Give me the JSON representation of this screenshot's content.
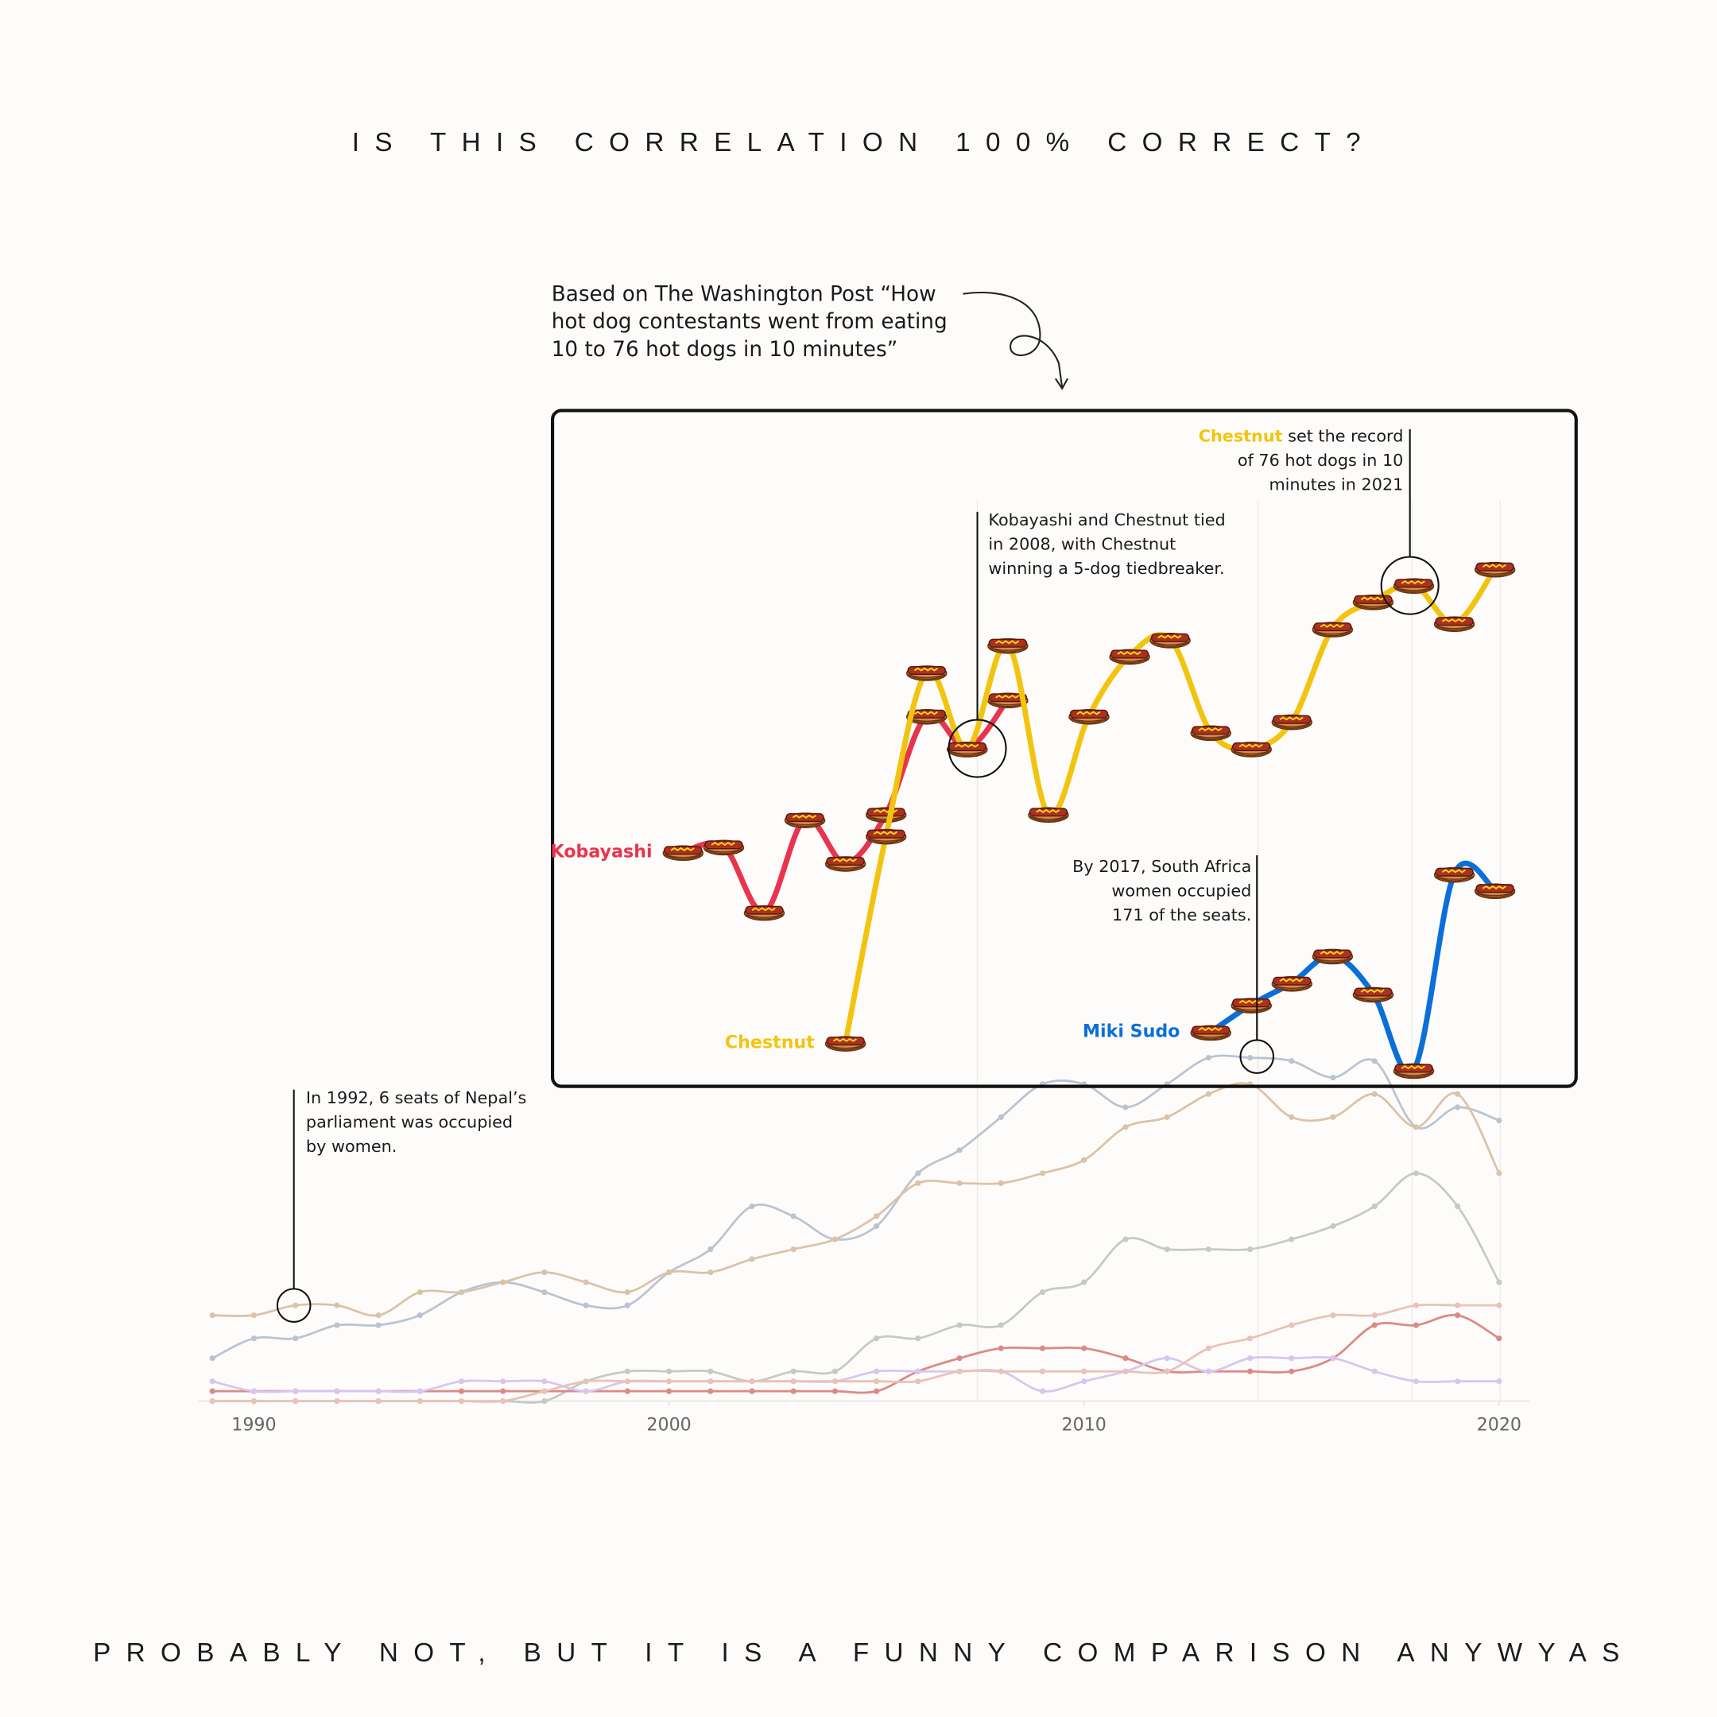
{
  "title": "IS THIS CORRELATION 100% CORRECT?",
  "footer": "PROBABLY NOT, BUT IT IS A FUNNY COMPARISON ANYWYAS",
  "note": {
    "lines": [
      "Based on The Washington Post “How",
      "hot dog contestants went from eating",
      "10 to 76 hot dogs in 10 minutes”"
    ]
  },
  "annotations": [
    {
      "lines": [
        "In 1992, 6 seats of Nepal’s",
        "parliament was occupied",
        "by women."
      ]
    },
    {
      "lines": [
        "Kobayashi and Chestnut tied",
        "in 2008, with Chestnut",
        "winning a 5-dog tiedbreaker."
      ]
    },
    {
      "highlight": "Chestnut",
      "lines": [
        " set the record",
        "of 76 hot dogs in 10",
        "minutes in 2021"
      ]
    },
    {
      "lines": [
        "By 2017, South Africa",
        "women occupied",
        "171 of the seats."
      ]
    }
  ],
  "chart_data": [
    {
      "type": "line",
      "x": [
        1989,
        1990,
        1991,
        1992,
        1993,
        1994,
        1995,
        1996,
        1997,
        1998,
        1999,
        2000,
        2001,
        2002,
        2003,
        2004,
        2005,
        2006,
        2007,
        2008,
        2009,
        2010,
        2011,
        2012,
        2013,
        2014,
        2015,
        2016,
        2017,
        2018,
        2019,
        2020
      ],
      "xlim": [
        1989,
        2020
      ],
      "xticks": [
        1990,
        2000,
        2010,
        2020
      ],
      "ylim": [
        0,
        110
      ],
      "series": [
        {
          "color": "#b9c4d3",
          "values": [
            13,
            19,
            19,
            23,
            23,
            26,
            33,
            36,
            33,
            29,
            29,
            39,
            46,
            59,
            56,
            49,
            53,
            69,
            76,
            86,
            96,
            96,
            89,
            96,
            104,
            104,
            103,
            98,
            103,
            83,
            89,
            85
          ]
        },
        {
          "color": "#dcc2a8",
          "values": [
            26,
            26,
            29,
            29,
            26,
            33,
            33,
            36,
            39,
            36,
            33,
            39,
            39,
            43,
            46,
            49,
            56,
            66,
            66,
            66,
            69,
            73,
            83,
            86,
            93,
            96,
            86,
            86,
            93,
            83,
            93,
            69
          ]
        },
        {
          "color": "#c3cbc5",
          "values": [
            0,
            0,
            0,
            0,
            0,
            0,
            0,
            0,
            0,
            6,
            9,
            9,
            9,
            6,
            9,
            9,
            19,
            19,
            23,
            23,
            33,
            36,
            49,
            46,
            46,
            46,
            49,
            53,
            59,
            69,
            59,
            36
          ]
        },
        {
          "color": "#dc8a86",
          "values": [
            3,
            3,
            3,
            3,
            3,
            3,
            3,
            3,
            3,
            3,
            3,
            3,
            3,
            3,
            3,
            3,
            3,
            9,
            13,
            16,
            16,
            16,
            13,
            9,
            9,
            9,
            9,
            13,
            23,
            23,
            26,
            19
          ]
        },
        {
          "color": "#d8c6ee",
          "values": [
            6,
            3,
            3,
            3,
            3,
            3,
            6,
            6,
            6,
            3,
            6,
            6,
            6,
            6,
            6,
            6,
            9,
            9,
            9,
            9,
            3,
            6,
            9,
            13,
            9,
            13,
            13,
            13,
            9,
            6,
            6,
            6
          ]
        },
        {
          "color": "#e9c2b8",
          "values": [
            0,
            0,
            0,
            0,
            0,
            0,
            0,
            0,
            3,
            6,
            6,
            6,
            6,
            6,
            6,
            6,
            6,
            6,
            9,
            9,
            9,
            9,
            9,
            9,
            16,
            19,
            23,
            26,
            26,
            29,
            29,
            29
          ]
        }
      ]
    },
    {
      "type": "line",
      "marker": "hot-dog",
      "x": [
        2001,
        2002,
        2003,
        2004,
        2005,
        2006,
        2007,
        2008,
        2009,
        2010,
        2011,
        2012,
        2013,
        2014,
        2015,
        2016,
        2017,
        2018,
        2019,
        2020,
        2021
      ],
      "xlim": [
        1998,
        2023
      ],
      "ylim": [
        28,
        90
      ],
      "series": [
        {
          "name": "Kobayashi",
          "color": "#e8344e",
          "values": [
            49.5,
            50,
            44,
            52.5,
            48.5,
            53,
            62,
            59,
            63.5,
            null,
            null,
            null,
            null,
            null,
            null,
            null,
            null,
            null,
            null,
            null,
            null
          ]
        },
        {
          "name": "Chestnut",
          "color": "#f2c40f",
          "values": [
            null,
            null,
            null,
            null,
            32,
            51,
            66,
            59,
            68.5,
            53,
            62,
            67.5,
            69,
            60.5,
            59,
            61.5,
            70,
            72.5,
            74,
            70.5,
            75.5
          ]
        },
        {
          "name": "Miki Sudo",
          "color": "#0a6fd8",
          "values": [
            null,
            null,
            null,
            null,
            null,
            null,
            null,
            null,
            null,
            null,
            null,
            null,
            null,
            33,
            35.5,
            37.5,
            40,
            36.5,
            29.5,
            47.5,
            46
          ]
        }
      ]
    }
  ]
}
